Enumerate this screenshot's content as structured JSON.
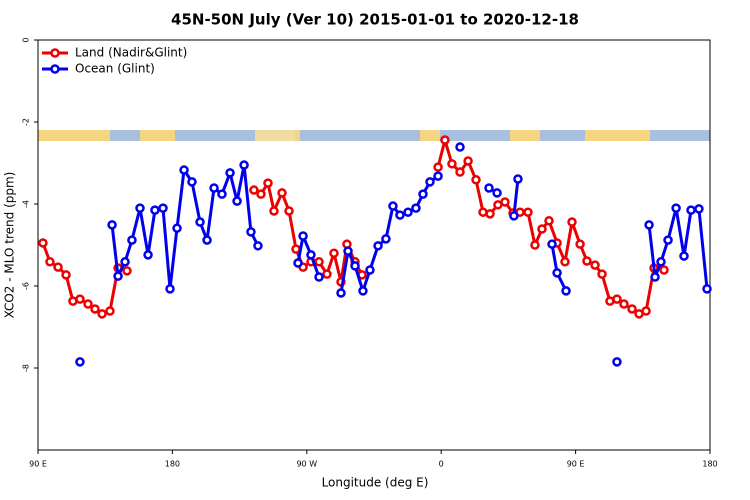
{
  "chart_data": {
    "type": "line",
    "title": "45N-50N July (Ver 10)   2015-01-01 to 2020-12-18",
    "x_label": "Longitude (deg E)",
    "y_label": "XCO2 - MLO trend (ppm)",
    "xlim": [
      90,
      540
    ],
    "ylim": [
      -10,
      0
    ],
    "xticks": [
      {
        "value": 90,
        "label": "90 E"
      },
      {
        "value": 180,
        "label": "180"
      },
      {
        "value": 270,
        "label": "90 W"
      },
      {
        "value": 360,
        "label": "0"
      },
      {
        "value": 450,
        "label": "90 E"
      },
      {
        "value": 540,
        "label": "180"
      }
    ],
    "yticks": [
      0,
      -2,
      -4,
      -6,
      -8
    ],
    "legend": "upper left",
    "series": [
      {
        "name": "Land (Nadir&Glint)",
        "color": "#ee0000",
        "x": [
          93.3,
          98.0,
          103.4,
          108.8,
          113.4,
          118.1,
          123.5,
          128.2,
          132.9,
          138.2,
          143.6,
          149.6,
          null,
          234.6,
          239.3,
          244.0,
          248.0,
          253.4,
          258.1,
          262.8,
          267.5,
          272.8,
          278.2,
          283.5,
          288.2,
          292.9,
          296.9,
          302.3,
          307.0,
          null,
          357.9,
          362.5,
          367.2,
          372.6,
          378.0,
          383.3,
          388.0,
          392.7,
          398.0,
          402.7,
          408.1,
          412.8,
          418.1,
          422.8,
          427.5,
          432.2,
          437.6,
          442.9,
          447.6,
          453.0,
          457.6,
          463.0,
          467.7,
          473.0,
          477.7,
          482.4,
          487.8,
          492.5,
          497.2,
          502.5,
          509.2
        ],
        "values": [
          -4.95,
          -5.41,
          -5.54,
          -5.73,
          -6.37,
          -6.32,
          -6.44,
          -6.56,
          -6.68,
          -6.61,
          -5.56,
          -5.63,
          null,
          -3.66,
          -3.76,
          -3.49,
          -4.17,
          -3.73,
          -4.17,
          -5.1,
          -5.54,
          -5.41,
          -5.41,
          -5.71,
          -5.2,
          -5.9,
          -4.98,
          -5.41,
          -5.73,
          null,
          -3.1,
          -2.44,
          -3.02,
          -3.22,
          -2.95,
          -3.41,
          -4.2,
          -4.24,
          -4.02,
          -3.95,
          -4.22,
          -4.2,
          -4.2,
          -5.0,
          -4.61,
          -4.41,
          -4.95,
          -5.41,
          -4.44,
          -4.98,
          -5.39,
          -5.49,
          -5.71,
          -6.37,
          -6.32,
          -6.44,
          -6.56,
          -6.68,
          -6.61,
          -5.56,
          -5.61
        ]
      },
      {
        "name": "Ocean (Glint)",
        "color": "#0000ee",
        "x": [
          118.1,
          null,
          139.6,
          143.6,
          148.3,
          152.9,
          158.3,
          163.7,
          168.3,
          173.7,
          178.4,
          183.1,
          187.8,
          193.1,
          198.5,
          203.2,
          207.9,
          213.2,
          218.6,
          223.3,
          228.0,
          232.6,
          237.3,
          null,
          264.1,
          267.5,
          272.8,
          278.2,
          null,
          292.9,
          297.6,
          302.3,
          307.6,
          312.3,
          317.7,
          323.0,
          327.7,
          332.4,
          337.8,
          343.1,
          347.8,
          352.5,
          357.9,
          null,
          372.6,
          null,
          392.0,
          397.4,
          null,
          408.7,
          411.4,
          null,
          434.2,
          437.6,
          443.6,
          null,
          477.7,
          null,
          499.2,
          503.2,
          507.2,
          511.9,
          517.3,
          522.6,
          527.3,
          532.6,
          538.0
        ],
        "values": [
          -7.85,
          null,
          -4.51,
          -5.76,
          -5.41,
          -4.88,
          -4.1,
          -5.24,
          -4.15,
          -4.1,
          -6.07,
          -4.59,
          -3.17,
          -3.46,
          -4.44,
          -4.88,
          -3.61,
          -3.76,
          -3.24,
          -3.93,
          -3.05,
          -4.68,
          -5.02,
          null,
          -5.44,
          -4.78,
          -5.24,
          -5.78,
          null,
          -6.17,
          -5.15,
          -5.51,
          -6.12,
          -5.61,
          -5.02,
          -4.85,
          -4.05,
          -4.27,
          -4.2,
          -4.1,
          -3.76,
          -3.46,
          -3.32,
          null,
          -2.61,
          null,
          -3.61,
          -3.73,
          null,
          -4.29,
          -3.39,
          null,
          -4.98,
          -5.68,
          -6.12,
          null,
          -7.85,
          null,
          -4.51,
          -5.78,
          -5.41,
          -4.88,
          -4.1,
          -5.27,
          -4.15,
          -4.12,
          -6.07
        ]
      }
    ]
  }
}
